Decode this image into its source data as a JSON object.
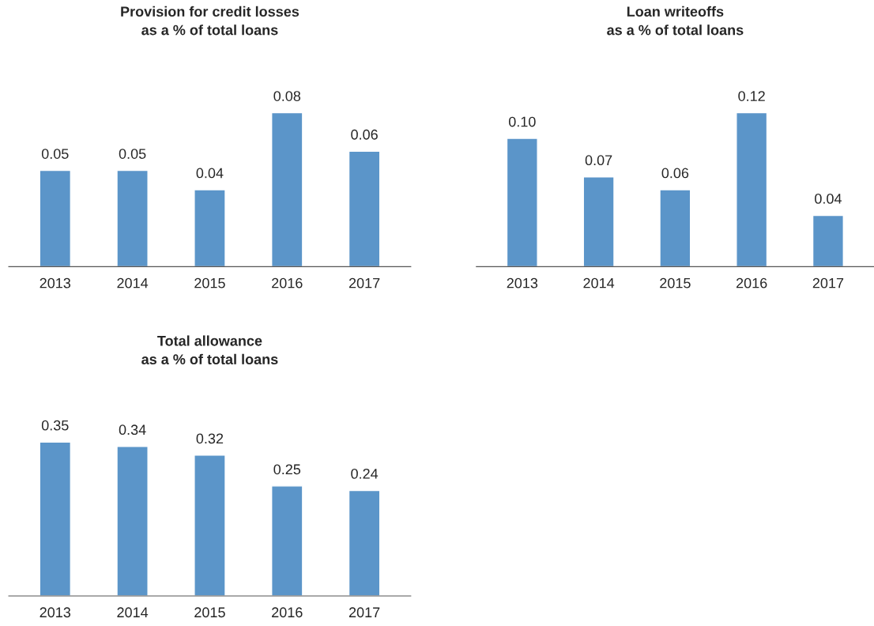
{
  "chart_data": [
    {
      "type": "bar",
      "title": "Provision for credit losses\nas a % of total loans",
      "categories": [
        "2013",
        "2014",
        "2015",
        "2016",
        "2017"
      ],
      "values": [
        0.05,
        0.05,
        0.04,
        0.08,
        0.06
      ],
      "value_labels": [
        "0.05",
        "0.05",
        "0.04",
        "0.08",
        "0.06"
      ],
      "color": "#5b95c9",
      "grid": false,
      "legend": false
    },
    {
      "type": "bar",
      "title": "Loan writeoffs\nas a % of total loans",
      "categories": [
        "2013",
        "2014",
        "2015",
        "2016",
        "2017"
      ],
      "values": [
        0.1,
        0.07,
        0.06,
        0.12,
        0.04
      ],
      "value_labels": [
        "0.10",
        "0.07",
        "0.06",
        "0.12",
        "0.04"
      ],
      "color": "#5b95c9",
      "grid": false,
      "legend": false
    },
    {
      "type": "bar",
      "title": "Total allowance\nas a % of total loans",
      "categories": [
        "2013",
        "2014",
        "2015",
        "2016",
        "2017"
      ],
      "values": [
        0.35,
        0.34,
        0.32,
        0.25,
        0.24
      ],
      "value_labels": [
        "0.35",
        "0.34",
        "0.32",
        "0.25",
        "0.24"
      ],
      "color": "#5b95c9",
      "grid": false,
      "legend": false
    }
  ]
}
